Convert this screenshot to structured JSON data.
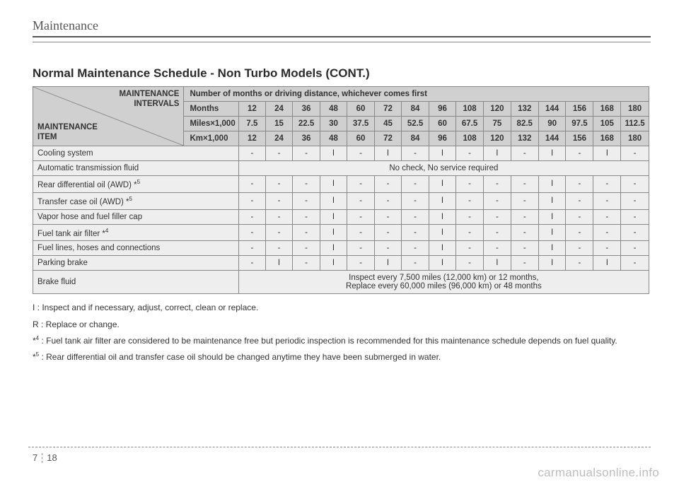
{
  "running_head": "Maintenance",
  "title": "Normal Maintenance Schedule - Non Turbo Models (CONT.)",
  "header": {
    "diag_top": "MAINTENANCE\nINTERVALS",
    "diag_bottom": "MAINTENANCE\nITEM",
    "span_label": "Number of months or driving distance, whichever comes first",
    "row_labels": [
      "Months",
      "Miles×1,000",
      "Km×1,000"
    ],
    "cols": {
      "months": [
        "12",
        "24",
        "36",
        "48",
        "60",
        "72",
        "84",
        "96",
        "108",
        "120",
        "132",
        "144",
        "156",
        "168",
        "180"
      ],
      "miles": [
        "7.5",
        "15",
        "22.5",
        "30",
        "37.5",
        "45",
        "52.5",
        "60",
        "67.5",
        "75",
        "82.5",
        "90",
        "97.5",
        "105",
        "112.5"
      ],
      "km": [
        "12",
        "24",
        "36",
        "48",
        "60",
        "72",
        "84",
        "96",
        "108",
        "120",
        "132",
        "144",
        "156",
        "168",
        "180"
      ]
    }
  },
  "rows": [
    {
      "name": "Cooling system",
      "cells": [
        "-",
        "-",
        "-",
        "I",
        "-",
        "I",
        "-",
        "I",
        "-",
        "I",
        "-",
        "I",
        "-",
        "I",
        "-"
      ]
    },
    {
      "name": "Automatic transmission fluid",
      "merged": "No check, No service required"
    },
    {
      "name": "Rear differential oil (AWD) *",
      "sup": "5",
      "cells": [
        "-",
        "-",
        "-",
        "I",
        "-",
        "-",
        "-",
        "I",
        "-",
        "-",
        "-",
        "I",
        "-",
        "-",
        "-"
      ]
    },
    {
      "name": "Transfer case oil (AWD) *",
      "sup": "5",
      "cells": [
        "-",
        "-",
        "-",
        "I",
        "-",
        "-",
        "-",
        "I",
        "-",
        "-",
        "-",
        "I",
        "-",
        "-",
        "-"
      ]
    },
    {
      "name": "Vapor hose and fuel filler cap",
      "cells": [
        "-",
        "-",
        "-",
        "I",
        "-",
        "-",
        "-",
        "I",
        "-",
        "-",
        "-",
        "I",
        "-",
        "-",
        "-"
      ]
    },
    {
      "name": "Fuel tank air filter *",
      "sup": "4",
      "cells": [
        "-",
        "-",
        "-",
        "I",
        "-",
        "-",
        "-",
        "I",
        "-",
        "-",
        "-",
        "I",
        "-",
        "-",
        "-"
      ]
    },
    {
      "name": "Fuel lines, hoses and connections",
      "cells": [
        "-",
        "-",
        "-",
        "I",
        "-",
        "-",
        "-",
        "I",
        "-",
        "-",
        "-",
        "I",
        "-",
        "-",
        "-"
      ]
    },
    {
      "name": "Parking brake",
      "cells": [
        "-",
        "I",
        "-",
        "I",
        "-",
        "I",
        "-",
        "I",
        "-",
        "I",
        "-",
        "I",
        "-",
        "I",
        "-"
      ]
    },
    {
      "name": "Brake fluid",
      "merged": "Inspect every 7,500 miles (12,000 km) or 12 months,\nReplace every 60,000 miles (96,000 km) or 48 months"
    }
  ],
  "notes": [
    {
      "prefix": "I",
      "text": ": Inspect and if necessary, adjust, correct, clean or replace."
    },
    {
      "prefix": "R",
      "text": ": Replace or change."
    },
    {
      "prefix": "*",
      "sup": "4",
      "text": ": Fuel tank air filter are considered to be maintenance free but periodic inspection is recommended for this maintenance schedule depends on fuel quality."
    },
    {
      "prefix": "*",
      "sup": "5",
      "text": ": Rear differential oil  and transfer case oil should be changed anytime they have been submerged in water."
    }
  ],
  "page_number": {
    "chapter": "7",
    "page": "18"
  },
  "watermark": "carmanualsonline.info",
  "style": {
    "header_bg": "#d0d0d0",
    "body_bg": "#eeeeee",
    "border_color": "#888888",
    "text_color": "#333333",
    "page_bg": "#ffffff",
    "font_size_body": 11.5,
    "font_size_title": 17,
    "font_size_notes": 12
  }
}
